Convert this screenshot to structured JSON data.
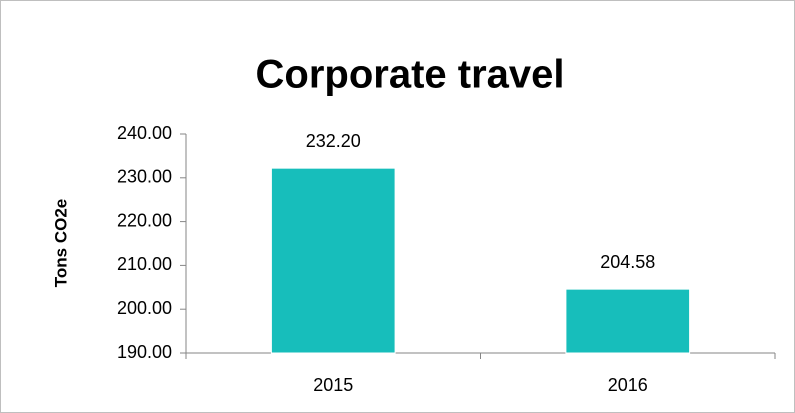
{
  "chart_data": {
    "type": "bar",
    "title": "Corporate travel",
    "y_label": "Tons CO2e",
    "categories": [
      "2015",
      "2016"
    ],
    "values": [
      232.2,
      204.58
    ],
    "value_labels": [
      "232.20",
      "204.58"
    ],
    "color": "#17bebb",
    "ylim": [
      190,
      240
    ],
    "yticks": [
      {
        "value": 190,
        "label": "190.00"
      },
      {
        "value": 200,
        "label": "200.00"
      },
      {
        "value": 210,
        "label": "210.00"
      },
      {
        "value": 220,
        "label": "220.00"
      },
      {
        "value": 230,
        "label": "230.00"
      },
      {
        "value": 240,
        "label": "240.00"
      }
    ],
    "grid": false
  }
}
